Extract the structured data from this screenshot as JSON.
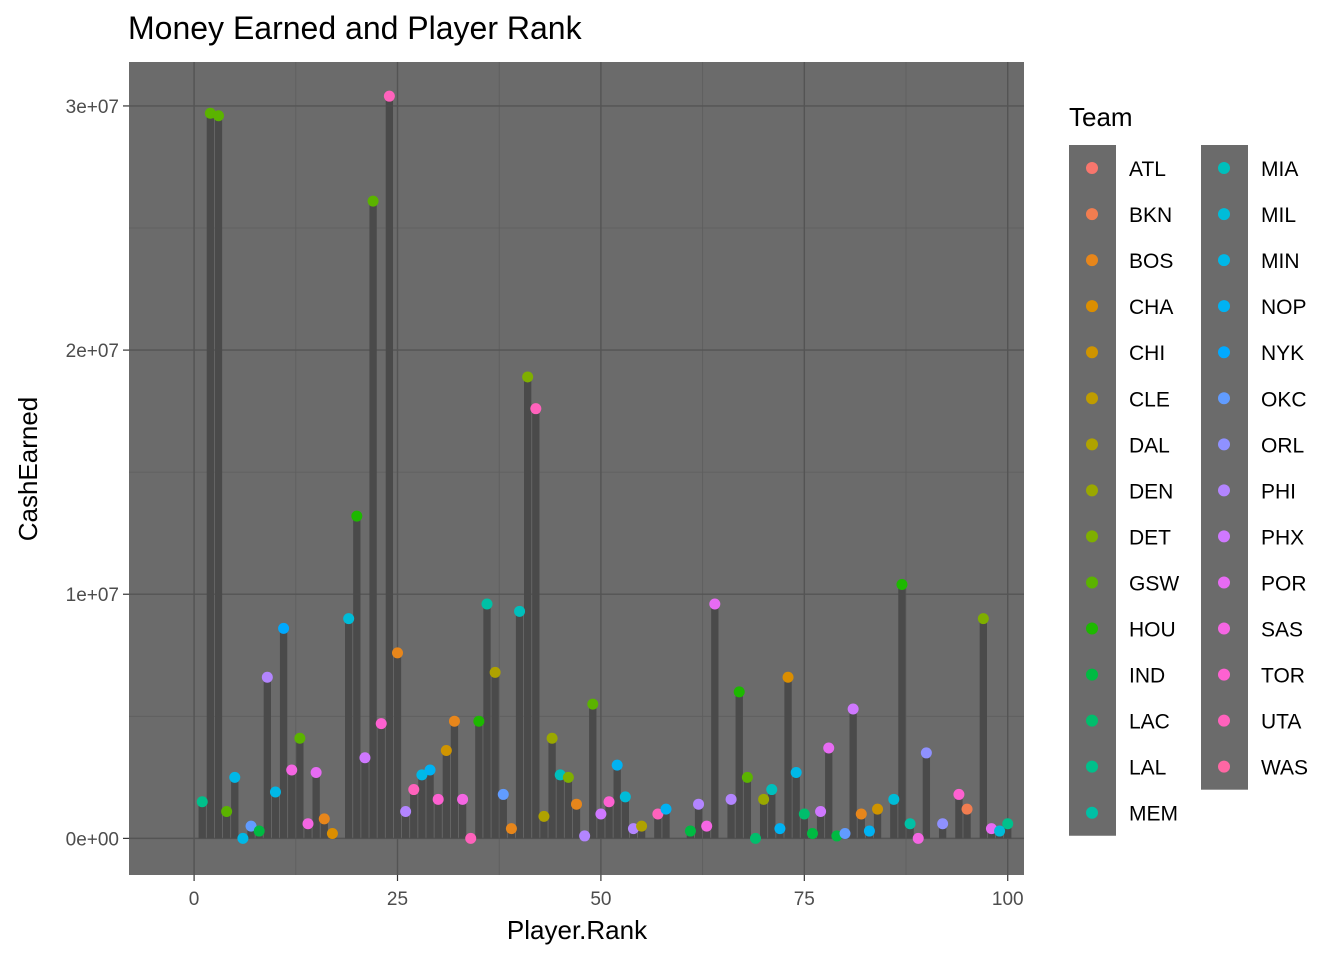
{
  "chart_data": {
    "type": "bar",
    "title": "Money Earned and Player Rank",
    "xlabel": "Player.Rank",
    "ylabel": "CashEarned",
    "xlim": [
      -8,
      102
    ],
    "ylim": [
      -1500000,
      31800000
    ],
    "x_ticks": [
      0,
      25,
      50,
      75,
      100
    ],
    "x_tick_labels": [
      "0",
      "25",
      "50",
      "75",
      "100"
    ],
    "y_ticks": [
      0,
      10000000,
      20000000,
      30000000
    ],
    "y_tick_labels": [
      "0e+00",
      "1e+07",
      "2e+07",
      "3e+07"
    ],
    "grid": true,
    "legend": {
      "title": "Team",
      "position": "right",
      "columns": 2,
      "teams": [
        "ATL",
        "BKN",
        "BOS",
        "CHA",
        "CHI",
        "CLE",
        "DAL",
        "DEN",
        "DET",
        "GSW",
        "HOU",
        "IND",
        "LAC",
        "LAL",
        "MEM",
        "MIA",
        "MIL",
        "MIN",
        "NOP",
        "NYK",
        "OKC",
        "ORL",
        "PHI",
        "PHX",
        "POR",
        "SAS",
        "TOR",
        "UTA",
        "WAS"
      ],
      "colors": [
        "#F8766D",
        "#F17D50",
        "#E7861B",
        "#DB8E00",
        "#CF9400",
        "#BF9C00",
        "#AFA200",
        "#9AA800",
        "#7FAF00",
        "#5BB300",
        "#1DB800",
        "#00BA42",
        "#00BE6C",
        "#00C08B",
        "#00C0A5",
        "#00BFBC",
        "#00BCD8",
        "#00B8E7",
        "#00B2F3",
        "#00A9FF",
        "#619CFF",
        "#8F91FF",
        "#B385FF",
        "#CF78FF",
        "#E76BF3",
        "#F566E3",
        "#FD61D1",
        "#FF62BC",
        "#FF67A4"
      ]
    },
    "points": [
      {
        "rank": 1,
        "cash": 1500000,
        "team": "LAL"
      },
      {
        "rank": 2,
        "cash": 29700000,
        "team": "GSW"
      },
      {
        "rank": 3,
        "cash": 29600000,
        "team": "GSW"
      },
      {
        "rank": 4,
        "cash": 1100000,
        "team": "GSW"
      },
      {
        "rank": 5,
        "cash": 2500000,
        "team": "MIN"
      },
      {
        "rank": 6,
        "cash": 0,
        "team": "MIN"
      },
      {
        "rank": 7,
        "cash": 500000,
        "team": "OKC"
      },
      {
        "rank": 8,
        "cash": 300000,
        "team": "IND"
      },
      {
        "rank": 9,
        "cash": 6600000,
        "team": "PHI"
      },
      {
        "rank": 10,
        "cash": 1900000,
        "team": "MIN"
      },
      {
        "rank": 11,
        "cash": 8600000,
        "team": "NYK"
      },
      {
        "rank": 12,
        "cash": 2800000,
        "team": "SAS"
      },
      {
        "rank": 13,
        "cash": 4100000,
        "team": "GSW"
      },
      {
        "rank": 14,
        "cash": 600000,
        "team": "SAS"
      },
      {
        "rank": 15,
        "cash": 2700000,
        "team": "POR"
      },
      {
        "rank": 16,
        "cash": 800000,
        "team": "BOS"
      },
      {
        "rank": 17,
        "cash": 200000,
        "team": "CHA"
      },
      {
        "rank": 19,
        "cash": 9000000,
        "team": "MIL"
      },
      {
        "rank": 20,
        "cash": 13200000,
        "team": "HOU"
      },
      {
        "rank": 21,
        "cash": 3300000,
        "team": "PHX"
      },
      {
        "rank": 22,
        "cash": 26100000,
        "team": "GSW"
      },
      {
        "rank": 23,
        "cash": 4700000,
        "team": "TOR"
      },
      {
        "rank": 24,
        "cash": 30400000,
        "team": "UTA"
      },
      {
        "rank": 25,
        "cash": 7600000,
        "team": "BOS"
      },
      {
        "rank": 26,
        "cash": 1100000,
        "team": "PHI"
      },
      {
        "rank": 27,
        "cash": 2000000,
        "team": "UTA"
      },
      {
        "rank": 28,
        "cash": 2600000,
        "team": "MIN"
      },
      {
        "rank": 29,
        "cash": 2800000,
        "team": "NOP"
      },
      {
        "rank": 30,
        "cash": 1600000,
        "team": "TOR"
      },
      {
        "rank": 31,
        "cash": 3600000,
        "team": "CHI"
      },
      {
        "rank": 32,
        "cash": 4800000,
        "team": "BOS"
      },
      {
        "rank": 33,
        "cash": 1600000,
        "team": "SAS"
      },
      {
        "rank": 34,
        "cash": 0,
        "team": "UTA"
      },
      {
        "rank": 35,
        "cash": 4800000,
        "team": "HOU"
      },
      {
        "rank": 36,
        "cash": 9600000,
        "team": "MEM"
      },
      {
        "rank": 37,
        "cash": 6800000,
        "team": "DAL"
      },
      {
        "rank": 38,
        "cash": 1800000,
        "team": "OKC"
      },
      {
        "rank": 39,
        "cash": 400000,
        "team": "BOS"
      },
      {
        "rank": 40,
        "cash": 9300000,
        "team": "MIA"
      },
      {
        "rank": 41,
        "cash": 18900000,
        "team": "DET"
      },
      {
        "rank": 42,
        "cash": 17600000,
        "team": "UTA"
      },
      {
        "rank": 43,
        "cash": 900000,
        "team": "DAL"
      },
      {
        "rank": 44,
        "cash": 4100000,
        "team": "DEN"
      },
      {
        "rank": 45,
        "cash": 2600000,
        "team": "MIA"
      },
      {
        "rank": 46,
        "cash": 2500000,
        "team": "DET"
      },
      {
        "rank": 47,
        "cash": 1400000,
        "team": "BOS"
      },
      {
        "rank": 48,
        "cash": 100000,
        "team": "PHI"
      },
      {
        "rank": 49,
        "cash": 5500000,
        "team": "GSW"
      },
      {
        "rank": 50,
        "cash": 1000000,
        "team": "PHX"
      },
      {
        "rank": 51,
        "cash": 1500000,
        "team": "TOR"
      },
      {
        "rank": 52,
        "cash": 3000000,
        "team": "NOP"
      },
      {
        "rank": 53,
        "cash": 1700000,
        "team": "MIL"
      },
      {
        "rank": 54,
        "cash": 400000,
        "team": "PHI"
      },
      {
        "rank": 55,
        "cash": 500000,
        "team": "DAL"
      },
      {
        "rank": 57,
        "cash": 1000000,
        "team": "UTA"
      },
      {
        "rank": 58,
        "cash": 1200000,
        "team": "NOP"
      },
      {
        "rank": 61,
        "cash": 300000,
        "team": "IND"
      },
      {
        "rank": 62,
        "cash": 1400000,
        "team": "PHI"
      },
      {
        "rank": 63,
        "cash": 500000,
        "team": "SAS"
      },
      {
        "rank": 64,
        "cash": 9600000,
        "team": "POR"
      },
      {
        "rank": 66,
        "cash": 1600000,
        "team": "PHI"
      },
      {
        "rank": 67,
        "cash": 6000000,
        "team": "HOU"
      },
      {
        "rank": 68,
        "cash": 2500000,
        "team": "GSW"
      },
      {
        "rank": 69,
        "cash": 0,
        "team": "LAC"
      },
      {
        "rank": 70,
        "cash": 1600000,
        "team": "DEN"
      },
      {
        "rank": 71,
        "cash": 2000000,
        "team": "MIA"
      },
      {
        "rank": 72,
        "cash": 400000,
        "team": "NOP"
      },
      {
        "rank": 73,
        "cash": 6600000,
        "team": "CHA"
      },
      {
        "rank": 74,
        "cash": 2700000,
        "team": "MIN"
      },
      {
        "rank": 75,
        "cash": 1000000,
        "team": "LAC"
      },
      {
        "rank": 76,
        "cash": 200000,
        "team": "IND"
      },
      {
        "rank": 77,
        "cash": 1100000,
        "team": "PHX"
      },
      {
        "rank": 78,
        "cash": 3700000,
        "team": "POR"
      },
      {
        "rank": 79,
        "cash": 100000,
        "team": "IND"
      },
      {
        "rank": 80,
        "cash": 200000,
        "team": "OKC"
      },
      {
        "rank": 81,
        "cash": 5300000,
        "team": "PHX"
      },
      {
        "rank": 82,
        "cash": 1000000,
        "team": "BOS"
      },
      {
        "rank": 83,
        "cash": 300000,
        "team": "NOP"
      },
      {
        "rank": 84,
        "cash": 1200000,
        "team": "CHI"
      },
      {
        "rank": 86,
        "cash": 1600000,
        "team": "MIL"
      },
      {
        "rank": 87,
        "cash": 10400000,
        "team": "HOU"
      },
      {
        "rank": 88,
        "cash": 600000,
        "team": "MEM"
      },
      {
        "rank": 89,
        "cash": 0,
        "team": "SAS"
      },
      {
        "rank": 90,
        "cash": 3500000,
        "team": "ORL"
      },
      {
        "rank": 92,
        "cash": 600000,
        "team": "ORL"
      },
      {
        "rank": 94,
        "cash": 1800000,
        "team": "TOR"
      },
      {
        "rank": 95,
        "cash": 1200000,
        "team": "BKN"
      },
      {
        "rank": 97,
        "cash": 9000000,
        "team": "DET"
      },
      {
        "rank": 98,
        "cash": 400000,
        "team": "POR"
      },
      {
        "rank": 99,
        "cash": 300000,
        "team": "MIL"
      },
      {
        "rank": 100,
        "cash": 600000,
        "team": "LAL"
      }
    ]
  }
}
